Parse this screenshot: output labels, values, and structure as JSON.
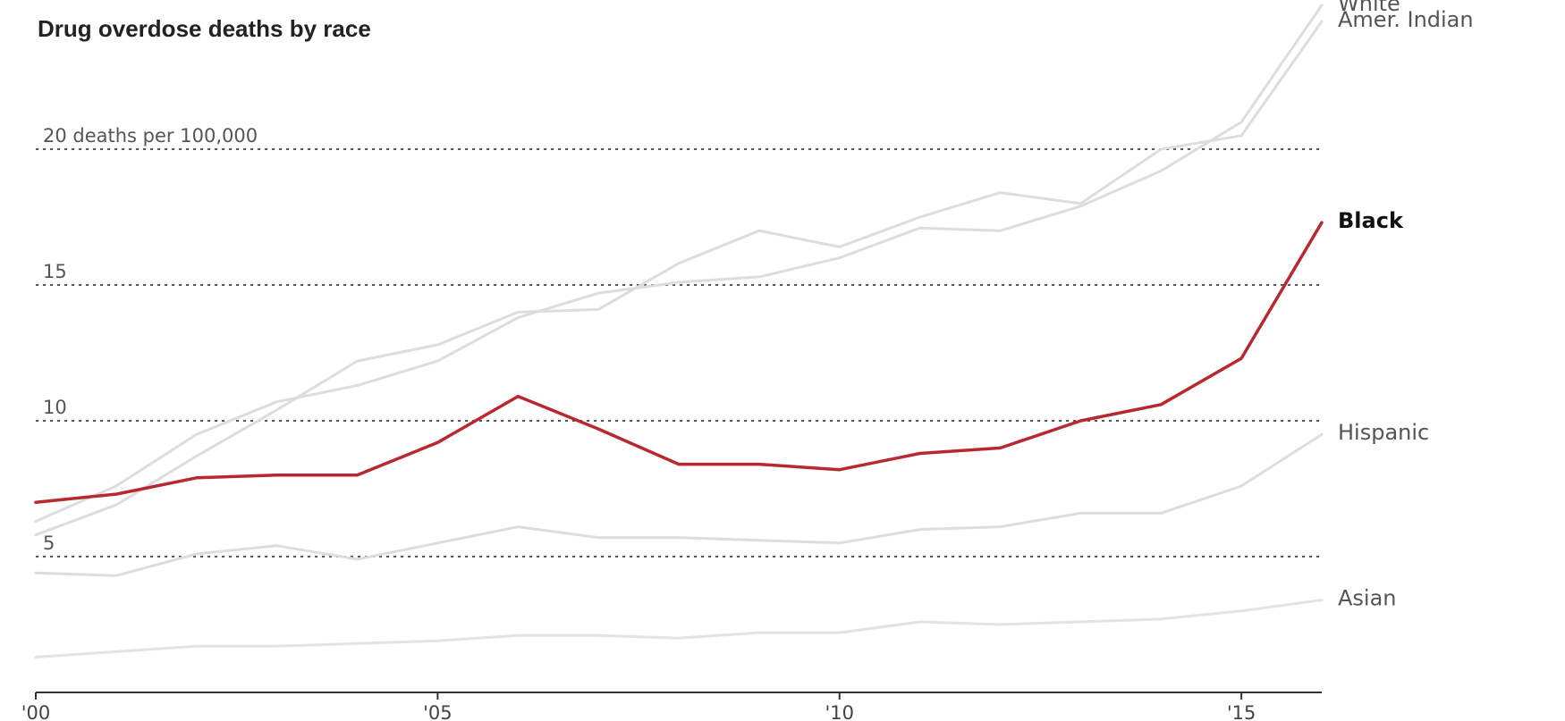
{
  "chart_data": {
    "type": "line",
    "title": "Drug overdose deaths by race",
    "xlabel": "",
    "ylabel": "",
    "x": [
      2000,
      2001,
      2002,
      2003,
      2004,
      2005,
      2006,
      2007,
      2008,
      2009,
      2010,
      2011,
      2012,
      2013,
      2014,
      2015,
      2016
    ],
    "xlim": [
      2000,
      2016
    ],
    "ylim": [
      0,
      25
    ],
    "x_ticks": [
      {
        "value": 2000,
        "label": "'00"
      },
      {
        "value": 2005,
        "label": "'05"
      },
      {
        "value": 2010,
        "label": "'10"
      },
      {
        "value": 2015,
        "label": "'15"
      }
    ],
    "y_gridlines": [
      {
        "value": 20,
        "label": "20 deaths per 100,000"
      },
      {
        "value": 15,
        "label": "15"
      },
      {
        "value": 10,
        "label": "10"
      },
      {
        "value": 5,
        "label": "5"
      }
    ],
    "grid": "dotted horizontal",
    "legend": "direct labels at right end of lines",
    "series": [
      {
        "name": "White",
        "color": "#dddddd",
        "highlight": false,
        "values": [
          6.3,
          7.6,
          9.5,
          10.7,
          11.3,
          12.2,
          13.8,
          14.7,
          15.1,
          15.3,
          16.0,
          17.1,
          17.0,
          17.9,
          19.2,
          21.0,
          25.3
        ]
      },
      {
        "name": "Amer. Indian",
        "color": "#dddddd",
        "highlight": false,
        "values": [
          5.8,
          6.9,
          8.7,
          10.4,
          12.2,
          12.8,
          14.0,
          14.1,
          15.8,
          17.0,
          16.4,
          17.5,
          18.4,
          18.0,
          20.0,
          20.5,
          24.7
        ]
      },
      {
        "name": "Black",
        "color": "#b8292f",
        "highlight": true,
        "values": [
          7.0,
          7.3,
          7.9,
          8.0,
          8.0,
          9.2,
          10.9,
          9.7,
          8.4,
          8.4,
          8.2,
          8.8,
          9.0,
          10.0,
          10.6,
          12.3,
          17.3
        ]
      },
      {
        "name": "Hispanic",
        "color": "#dddddd",
        "highlight": false,
        "values": [
          4.4,
          4.3,
          5.1,
          5.4,
          4.9,
          5.5,
          6.1,
          5.7,
          5.7,
          5.6,
          5.5,
          6.0,
          6.1,
          6.6,
          6.6,
          7.6,
          9.5
        ]
      },
      {
        "name": "Asian",
        "color": "#e3e3e3",
        "highlight": false,
        "values": [
          1.3,
          1.5,
          1.7,
          1.7,
          1.8,
          1.9,
          2.1,
          2.1,
          2.0,
          2.2,
          2.2,
          2.6,
          2.5,
          2.6,
          2.7,
          3.0,
          3.4
        ]
      }
    ]
  }
}
